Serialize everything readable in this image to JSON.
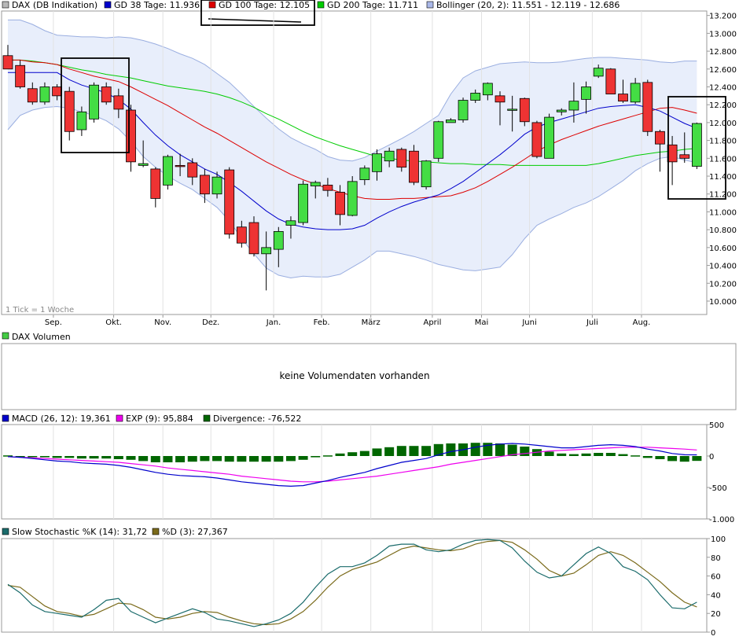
{
  "legend_price": [
    {
      "label": "DAX (DB Indikation)",
      "color": "#b7b7b7"
    },
    {
      "label": "GD 38 Tage: 11.936",
      "color": "#0000cc"
    },
    {
      "label": "GD 100 Tage: 12.105",
      "color": "#dd0000"
    },
    {
      "label": "GD 200 Tage: 11.711",
      "color": "#00cc00"
    },
    {
      "label": "Bollinger (20, 2): 11.551 - 12.119 - 12.686",
      "color": "#aab8e8"
    }
  ],
  "tick_note": "1 Tick = 1 Woche",
  "volume_legend": {
    "label": "DAX Volumen",
    "color": "#44cc44"
  },
  "volume_message": "keine Volumendaten vorhanden",
  "legend_macd": [
    {
      "label": "MACD (26, 12): 19,361",
      "color": "#0000cc"
    },
    {
      "label": "EXP (9): 95,884",
      "color": "#ee00ee"
    },
    {
      "label": "Divergence: -76,522",
      "color": "#006600"
    }
  ],
  "legend_stoch": [
    {
      "label": "Slow Stochastic %K (14): 31,72",
      "color": "#1a6b6b"
    },
    {
      "label": "%D (3): 27,367",
      "color": "#7a6a1a"
    }
  ],
  "colors": {
    "up": "#44dd44",
    "down": "#ee3333",
    "band_fill": "#e8eefb",
    "band_line": "#9aaee0",
    "gd38": "#0000cc",
    "gd100": "#dd0000",
    "gd200": "#00cc00",
    "macd": "#0000cc",
    "exp": "#ee00ee",
    "div": "#006600",
    "k": "#1a6b6b",
    "d": "#7a6a1a"
  },
  "chart_data": [
    {
      "type": "candlestick",
      "title": "DAX (DB Indikation)",
      "x_labels": [
        "Sep.",
        "Okt.",
        "Nov.",
        "Dez.",
        "Jan.",
        "Feb.",
        "März",
        "April",
        "Mai",
        "Juni",
        "Juli",
        "Aug."
      ],
      "x_label_weeks": [
        3.7,
        8.6,
        12.6,
        16.5,
        21.6,
        25.5,
        29.5,
        34.5,
        38.5,
        42.4,
        47.5,
        51.5
      ],
      "ylim": [
        9850,
        13250
      ],
      "yticks": [
        10000,
        10200,
        10400,
        10600,
        10800,
        11000,
        11200,
        11400,
        11600,
        11800,
        12000,
        12200,
        12400,
        12600,
        12800,
        13000,
        13200
      ],
      "ytick_labels": [
        "10.000",
        "10.200",
        "10.400",
        "10.600",
        "10.800",
        "11.000",
        "11.200",
        "11.400",
        "11.600",
        "11.800",
        "12.000",
        "12.200",
        "12.400",
        "12.600",
        "12.800",
        "13.000",
        "13.200"
      ],
      "candles": [
        {
          "o": 12750,
          "h": 12870,
          "l": 12600,
          "c": 12600
        },
        {
          "o": 12640,
          "h": 12700,
          "l": 12380,
          "c": 12400
        },
        {
          "o": 12380,
          "h": 12450,
          "l": 12200,
          "c": 12230
        },
        {
          "o": 12230,
          "h": 12450,
          "l": 12200,
          "c": 12400
        },
        {
          "o": 12400,
          "h": 12430,
          "l": 12250,
          "c": 12300
        },
        {
          "o": 12350,
          "h": 12400,
          "l": 11800,
          "c": 11900
        },
        {
          "o": 11920,
          "h": 12180,
          "l": 11850,
          "c": 12120
        },
        {
          "o": 12040,
          "h": 12450,
          "l": 12000,
          "c": 12420
        },
        {
          "o": 12400,
          "h": 12450,
          "l": 12200,
          "c": 12230
        },
        {
          "o": 12300,
          "h": 12380,
          "l": 12050,
          "c": 12150
        },
        {
          "o": 12140,
          "h": 12200,
          "l": 11450,
          "c": 11560
        },
        {
          "o": 11520,
          "h": 11800,
          "l": 11500,
          "c": 11540
        },
        {
          "o": 11480,
          "h": 11500,
          "l": 11050,
          "c": 11150
        },
        {
          "o": 11300,
          "h": 11640,
          "l": 11250,
          "c": 11620
        },
        {
          "o": 11520,
          "h": 11650,
          "l": 11400,
          "c": 11510
        },
        {
          "o": 11550,
          "h": 11600,
          "l": 11300,
          "c": 11390
        },
        {
          "o": 11410,
          "h": 11480,
          "l": 11100,
          "c": 11200
        },
        {
          "o": 11200,
          "h": 11450,
          "l": 11150,
          "c": 11390
        },
        {
          "o": 11470,
          "h": 11500,
          "l": 10700,
          "c": 10750
        },
        {
          "o": 10830,
          "h": 10900,
          "l": 10600,
          "c": 10650
        },
        {
          "o": 10880,
          "h": 10950,
          "l": 10500,
          "c": 10530
        },
        {
          "o": 10530,
          "h": 10780,
          "l": 10120,
          "c": 10600
        },
        {
          "o": 10580,
          "h": 10830,
          "l": 10380,
          "c": 10780
        },
        {
          "o": 10850,
          "h": 10950,
          "l": 10700,
          "c": 10900
        },
        {
          "o": 10880,
          "h": 11350,
          "l": 10850,
          "c": 11310
        },
        {
          "o": 11290,
          "h": 11350,
          "l": 11150,
          "c": 11330
        },
        {
          "o": 11300,
          "h": 11380,
          "l": 11170,
          "c": 11240
        },
        {
          "o": 11220,
          "h": 11300,
          "l": 10850,
          "c": 10970
        },
        {
          "o": 10960,
          "h": 11400,
          "l": 10950,
          "c": 11340
        },
        {
          "o": 11360,
          "h": 11520,
          "l": 11300,
          "c": 11490
        },
        {
          "o": 11450,
          "h": 11700,
          "l": 11350,
          "c": 11650
        },
        {
          "o": 11570,
          "h": 11720,
          "l": 11500,
          "c": 11680
        },
        {
          "o": 11700,
          "h": 11720,
          "l": 11450,
          "c": 11500
        },
        {
          "o": 11680,
          "h": 11750,
          "l": 11300,
          "c": 11330
        },
        {
          "o": 11280,
          "h": 11580,
          "l": 11250,
          "c": 11570
        },
        {
          "o": 11600,
          "h": 12020,
          "l": 11560,
          "c": 12010
        },
        {
          "o": 12000,
          "h": 12050,
          "l": 12000,
          "c": 12030
        },
        {
          "o": 12030,
          "h": 12280,
          "l": 12000,
          "c": 12250
        },
        {
          "o": 12250,
          "h": 12370,
          "l": 12220,
          "c": 12330
        },
        {
          "o": 12310,
          "h": 12450,
          "l": 12250,
          "c": 12440
        },
        {
          "o": 12300,
          "h": 12350,
          "l": 11970,
          "c": 12230
        },
        {
          "o": 12150,
          "h": 12300,
          "l": 11900,
          "c": 12150
        },
        {
          "o": 12270,
          "h": 12280,
          "l": 11960,
          "c": 12010
        },
        {
          "o": 12000,
          "h": 12020,
          "l": 11600,
          "c": 11620
        },
        {
          "o": 11600,
          "h": 12100,
          "l": 11600,
          "c": 12060
        },
        {
          "o": 12120,
          "h": 12160,
          "l": 12080,
          "c": 12140
        },
        {
          "o": 12140,
          "h": 12450,
          "l": 12000,
          "c": 12240
        },
        {
          "o": 12260,
          "h": 12460,
          "l": 12100,
          "c": 12400
        },
        {
          "o": 12520,
          "h": 12650,
          "l": 12500,
          "c": 12610
        },
        {
          "o": 12600,
          "h": 12610,
          "l": 12320,
          "c": 12320
        },
        {
          "o": 12320,
          "h": 12480,
          "l": 12220,
          "c": 12240
        },
        {
          "o": 12230,
          "h": 12500,
          "l": 12210,
          "c": 12440
        },
        {
          "o": 12450,
          "h": 12480,
          "l": 11850,
          "c": 11900
        },
        {
          "o": 11900,
          "h": 11920,
          "l": 11450,
          "c": 11760
        },
        {
          "o": 11750,
          "h": 11850,
          "l": 11300,
          "c": 11560
        },
        {
          "o": 11640,
          "h": 11890,
          "l": 11550,
          "c": 11600
        },
        {
          "o": 11510,
          "h": 12000,
          "l": 11480,
          "c": 11990
        }
      ],
      "gd38": [
        12560,
        12560,
        12560,
        12560,
        12560,
        12480,
        12420,
        12380,
        12330,
        12260,
        12150,
        12000,
        11860,
        11740,
        11640,
        11560,
        11480,
        11420,
        11330,
        11230,
        11120,
        11010,
        10920,
        10860,
        10830,
        10810,
        10800,
        10800,
        10810,
        10850,
        10930,
        11000,
        11060,
        11110,
        11150,
        11190,
        11260,
        11340,
        11440,
        11540,
        11640,
        11750,
        11870,
        11950,
        12000,
        12040,
        12080,
        12120,
        12160,
        12180,
        12190,
        12200,
        12170,
        12130,
        12060,
        11990,
        11936
      ],
      "gd100": [
        12700,
        12700,
        12680,
        12670,
        12650,
        12600,
        12560,
        12520,
        12490,
        12460,
        12400,
        12330,
        12260,
        12190,
        12110,
        12030,
        11950,
        11880,
        11800,
        11720,
        11640,
        11560,
        11490,
        11420,
        11360,
        11310,
        11260,
        11220,
        11180,
        11150,
        11140,
        11140,
        11150,
        11150,
        11160,
        11170,
        11180,
        11220,
        11270,
        11340,
        11420,
        11500,
        11590,
        11680,
        11750,
        11810,
        11860,
        11910,
        11960,
        12000,
        12040,
        12080,
        12120,
        12160,
        12170,
        12140,
        12105
      ],
      "gd200": [
        12700,
        12700,
        12690,
        12670,
        12650,
        12620,
        12590,
        12570,
        12540,
        12520,
        12500,
        12470,
        12440,
        12410,
        12390,
        12370,
        12350,
        12320,
        12280,
        12230,
        12170,
        12100,
        12040,
        11970,
        11900,
        11840,
        11790,
        11740,
        11700,
        11660,
        11620,
        11600,
        11580,
        11570,
        11560,
        11550,
        11540,
        11540,
        11530,
        11530,
        11530,
        11520,
        11520,
        11520,
        11520,
        11520,
        11520,
        11520,
        11540,
        11570,
        11600,
        11630,
        11650,
        11670,
        11680,
        11700,
        11711
      ],
      "bb_upper": [
        13150,
        13150,
        13100,
        13030,
        12980,
        12970,
        12960,
        12960,
        12950,
        12960,
        12950,
        12920,
        12880,
        12830,
        12770,
        12720,
        12650,
        12550,
        12450,
        12320,
        12180,
        12050,
        11930,
        11830,
        11760,
        11700,
        11620,
        11580,
        11570,
        11610,
        11680,
        11750,
        11820,
        11900,
        11990,
        12080,
        12320,
        12500,
        12580,
        12620,
        12660,
        12670,
        12680,
        12670,
        12670,
        12680,
        12700,
        12720,
        12730,
        12730,
        12720,
        12710,
        12700,
        12680,
        12670,
        12690,
        12690
      ],
      "bb_lower": [
        11920,
        12080,
        12140,
        12170,
        12180,
        12160,
        12120,
        12080,
        12020,
        11930,
        11790,
        11620,
        11500,
        11400,
        11320,
        11250,
        11150,
        11050,
        10900,
        10700,
        10530,
        10370,
        10290,
        10260,
        10280,
        10270,
        10270,
        10300,
        10380,
        10460,
        10560,
        10560,
        10530,
        10500,
        10460,
        10410,
        10380,
        10350,
        10340,
        10360,
        10380,
        10520,
        10700,
        10850,
        10920,
        10980,
        11050,
        11100,
        11170,
        11260,
        11350,
        11460,
        11540,
        11600,
        11620,
        11580,
        11551
      ]
    },
    {
      "type": "line",
      "title": "MACD (26, 12)",
      "ylim": [
        -1000,
        500
      ],
      "yticks": [
        -1000,
        -500,
        0,
        500
      ],
      "ytick_labels": [
        "-1.000",
        "-500",
        "0",
        "500"
      ],
      "series": [
        {
          "name": "MACD (26, 12)",
          "values": [
            -10,
            -20,
            -40,
            -60,
            -80,
            -90,
            -110,
            -120,
            -130,
            -150,
            -180,
            -220,
            -260,
            -290,
            -310,
            -320,
            -330,
            -350,
            -380,
            -410,
            -430,
            -450,
            -470,
            -480,
            -470,
            -430,
            -390,
            -340,
            -300,
            -260,
            -200,
            -150,
            -100,
            -70,
            -40,
            20,
            70,
            100,
            140,
            170,
            190,
            200,
            190,
            170,
            150,
            130,
            130,
            150,
            170,
            180,
            170,
            150,
            110,
            80,
            40,
            20,
            19
          ]
        },
        {
          "name": "EXP (9)",
          "values": [
            -10,
            -20,
            -30,
            -40,
            -50,
            -60,
            -70,
            -80,
            -90,
            -100,
            -120,
            -140,
            -160,
            -190,
            -210,
            -230,
            -250,
            -270,
            -290,
            -320,
            -340,
            -360,
            -380,
            -400,
            -410,
            -410,
            -400,
            -380,
            -360,
            -340,
            -320,
            -290,
            -260,
            -230,
            -200,
            -170,
            -130,
            -100,
            -70,
            -40,
            -10,
            20,
            40,
            60,
            80,
            90,
            100,
            110,
            120,
            130,
            140,
            140,
            140,
            130,
            120,
            110,
            96
          ]
        },
        {
          "name": "Divergence",
          "values": [
            10,
            0,
            -10,
            -20,
            -30,
            -30,
            -40,
            -40,
            -40,
            -50,
            -60,
            -80,
            -100,
            -100,
            -100,
            -90,
            -80,
            -80,
            -90,
            -90,
            -90,
            -90,
            -90,
            -80,
            -60,
            -20,
            10,
            40,
            60,
            80,
            120,
            140,
            160,
            160,
            160,
            190,
            200,
            200,
            210,
            210,
            200,
            180,
            150,
            110,
            70,
            40,
            30,
            40,
            50,
            50,
            30,
            10,
            -30,
            -50,
            -80,
            -90,
            -77
          ]
        }
      ]
    },
    {
      "type": "line",
      "title": "Slow Stochastic",
      "ylim": [
        0,
        100
      ],
      "yticks": [
        0,
        20,
        40,
        60,
        80,
        100
      ],
      "ytick_labels": [
        "0",
        "20",
        "40",
        "60",
        "80",
        "100"
      ],
      "series": [
        {
          "name": "%K (14)",
          "values": [
            51,
            42,
            29,
            22,
            20,
            18,
            16,
            24,
            34,
            36,
            22,
            16,
            10,
            15,
            20,
            25,
            21,
            14,
            12,
            9,
            6,
            9,
            13,
            20,
            32,
            48,
            62,
            70,
            70,
            74,
            82,
            92,
            94,
            94,
            88,
            86,
            88,
            94,
            98,
            99,
            98,
            90,
            76,
            64,
            58,
            60,
            72,
            84,
            91,
            84,
            70,
            65,
            56,
            40,
            26,
            25,
            32
          ]
        },
        {
          "name": "%D (3)",
          "values": [
            50,
            48,
            38,
            28,
            22,
            20,
            17,
            19,
            25,
            31,
            30,
            24,
            16,
            14,
            16,
            20,
            22,
            21,
            16,
            12,
            9,
            8,
            9,
            14,
            22,
            34,
            48,
            60,
            67,
            71,
            75,
            82,
            89,
            92,
            90,
            88,
            87,
            89,
            94,
            97,
            98,
            96,
            88,
            78,
            66,
            60,
            63,
            72,
            82,
            86,
            82,
            74,
            64,
            54,
            42,
            32,
            27
          ]
        }
      ]
    }
  ]
}
